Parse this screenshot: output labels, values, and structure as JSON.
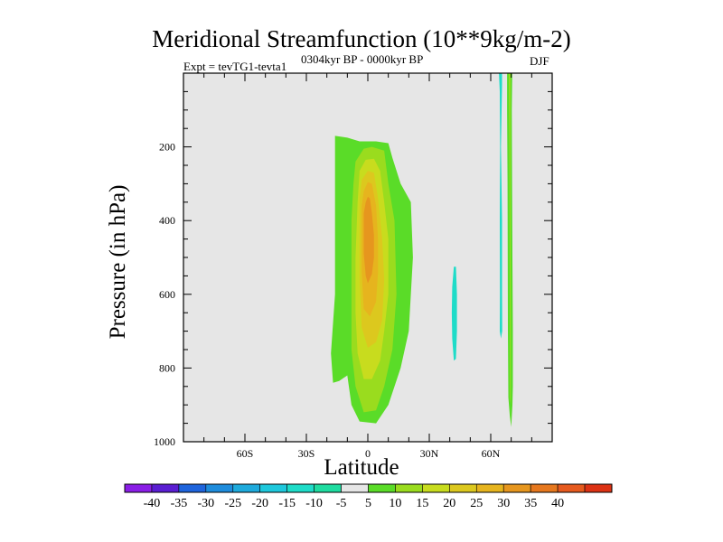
{
  "chart_data": {
    "type": "contour",
    "title": "Meridional Streamfunction (10**9kg/m-2)",
    "subtitle_left": "Expt = tevTG1-tevta1",
    "subtitle_center": "0304kyr BP - 0000kyr BP",
    "subtitle_right": "DJF",
    "xlabel": "Latitude",
    "ylabel": "Pressure (in hPa)",
    "xlim": [
      -90,
      90
    ],
    "ylim": [
      0,
      1000
    ],
    "x_ticks": [
      {
        "value": -60,
        "label": "60S"
      },
      {
        "value": -30,
        "label": "30S"
      },
      {
        "value": 0,
        "label": "0"
      },
      {
        "value": 30,
        "label": "30N"
      },
      {
        "value": 60,
        "label": "60N"
      }
    ],
    "y_ticks": [
      {
        "value": 200,
        "label": "200"
      },
      {
        "value": 400,
        "label": "400"
      },
      {
        "value": 600,
        "label": "600"
      },
      {
        "value": 800,
        "label": "800"
      },
      {
        "value": 1000,
        "label": "1000"
      }
    ],
    "background_color": "#e6e6e6",
    "colorbar": {
      "colors": [
        "#8a1ee6",
        "#5a1ed2",
        "#1e64dc",
        "#1e8cdc",
        "#1eaadc",
        "#1ec8dc",
        "#1edcc8",
        "#1edca0",
        "#e6e6e6",
        "#5adc28",
        "#9adc1e",
        "#c8dc1e",
        "#dcc81e",
        "#e6b41e",
        "#e6961e",
        "#e6781e",
        "#e65a1e",
        "#dc3214"
      ],
      "labels": [
        "-40",
        "-35",
        "-30",
        "-25",
        "-20",
        "-15",
        "-10",
        "-5",
        "5",
        "10",
        "15",
        "20",
        "25",
        "30",
        "35",
        "40"
      ]
    },
    "regions": [
      {
        "name": "positive-cell-5",
        "color": "#5adc28",
        "polygon": [
          [
            -16,
            170
          ],
          [
            -10,
            175
          ],
          [
            -4,
            185
          ],
          [
            4,
            185
          ],
          [
            10,
            190
          ],
          [
            12,
            230
          ],
          [
            16,
            300
          ],
          [
            21,
            350
          ],
          [
            22,
            500
          ],
          [
            20,
            700
          ],
          [
            16,
            800
          ],
          [
            10,
            900
          ],
          [
            4,
            950
          ],
          [
            -4,
            945
          ],
          [
            -8,
            900
          ],
          [
            -10,
            820
          ],
          [
            -14,
            835
          ],
          [
            -17,
            840
          ],
          [
            -18,
            760
          ],
          [
            -16,
            600
          ],
          [
            -16,
            400
          ],
          [
            -16,
            250
          ]
        ]
      },
      {
        "name": "positive-cell-10",
        "color": "#9adc1e",
        "polygon": [
          [
            -6,
            240
          ],
          [
            -2,
            205
          ],
          [
            2,
            200
          ],
          [
            8,
            210
          ],
          [
            10,
            300
          ],
          [
            13,
            400
          ],
          [
            14,
            600
          ],
          [
            12,
            750
          ],
          [
            8,
            850
          ],
          [
            4,
            915
          ],
          [
            -2,
            920
          ],
          [
            -6,
            850
          ],
          [
            -8,
            750
          ],
          [
            -8,
            600
          ],
          [
            -8,
            400
          ],
          [
            -7,
            300
          ]
        ]
      },
      {
        "name": "positive-cell-15",
        "color": "#c8dc1e",
        "polygon": [
          [
            -4,
            265
          ],
          [
            -1,
            235
          ],
          [
            3,
            232
          ],
          [
            6,
            265
          ],
          [
            8,
            350
          ],
          [
            10,
            450
          ],
          [
            10,
            600
          ],
          [
            8,
            700
          ],
          [
            6,
            780
          ],
          [
            2,
            830
          ],
          [
            -2,
            830
          ],
          [
            -5,
            760
          ],
          [
            -6,
            650
          ],
          [
            -6,
            500
          ],
          [
            -5,
            350
          ]
        ]
      },
      {
        "name": "positive-cell-20",
        "color": "#dcc81e",
        "polygon": [
          [
            -3,
            290
          ],
          [
            0,
            265
          ],
          [
            3,
            270
          ],
          [
            5,
            340
          ],
          [
            7,
            450
          ],
          [
            8,
            560
          ],
          [
            7,
            670
          ],
          [
            4,
            730
          ],
          [
            0,
            745
          ],
          [
            -3,
            690
          ],
          [
            -4,
            560
          ],
          [
            -4,
            430
          ],
          [
            -4,
            340
          ]
        ]
      },
      {
        "name": "positive-cell-25",
        "color": "#e6b41e",
        "polygon": [
          [
            -2,
            320
          ],
          [
            0,
            295
          ],
          [
            2,
            300
          ],
          [
            4,
            360
          ],
          [
            5,
            450
          ],
          [
            5,
            540
          ],
          [
            4,
            620
          ],
          [
            1,
            660
          ],
          [
            -2,
            640
          ],
          [
            -3,
            540
          ],
          [
            -3,
            430
          ],
          [
            -3,
            360
          ]
        ]
      },
      {
        "name": "positive-cell-30",
        "color": "#e6961e",
        "polygon": [
          [
            -1,
            350
          ],
          [
            0,
            335
          ],
          [
            1,
            340
          ],
          [
            2,
            380
          ],
          [
            3,
            440
          ],
          [
            3,
            500
          ],
          [
            2,
            545
          ],
          [
            0,
            570
          ],
          [
            -1,
            550
          ],
          [
            -2,
            490
          ],
          [
            -2,
            420
          ],
          [
            -2,
            380
          ]
        ]
      },
      {
        "name": "negative-cell-30n",
        "color": "#1edcc8",
        "polygon": [
          [
            42,
            525
          ],
          [
            43,
            525
          ],
          [
            43.5,
            600
          ],
          [
            43.5,
            700
          ],
          [
            43,
            775
          ],
          [
            42,
            780
          ],
          [
            41.2,
            720
          ],
          [
            41,
            650
          ],
          [
            41.2,
            580
          ]
        ]
      },
      {
        "name": "negative-strip-65n",
        "color": "#1edcc8",
        "polygon": [
          [
            64,
            0
          ],
          [
            65.5,
            0
          ],
          [
            65.5,
            30
          ],
          [
            65,
            200
          ],
          [
            65.5,
            400
          ],
          [
            65.5,
            600
          ],
          [
            65.6,
            700
          ],
          [
            65,
            720
          ],
          [
            64.4,
            700
          ],
          [
            64.5,
            600
          ],
          [
            64.4,
            400
          ],
          [
            64.6,
            200
          ],
          [
            64.4,
            50
          ]
        ]
      },
      {
        "name": "positive-strip-70n",
        "color": "#5adc28",
        "polygon": [
          [
            68,
            0
          ],
          [
            70.5,
            0
          ],
          [
            70.3,
            100
          ],
          [
            70.4,
            300
          ],
          [
            70.6,
            500
          ],
          [
            70.8,
            700
          ],
          [
            70.8,
            850
          ],
          [
            70.6,
            900
          ],
          [
            70,
            960
          ],
          [
            69.3,
            930
          ],
          [
            68.6,
            880
          ],
          [
            68.4,
            700
          ],
          [
            68.3,
            500
          ],
          [
            68.2,
            300
          ],
          [
            68,
            100
          ]
        ]
      },
      {
        "name": "positive-strip-70n-inner",
        "color": "#9adc1e",
        "polygon": [
          [
            68.8,
            0
          ],
          [
            69.6,
            0
          ],
          [
            69.6,
            200
          ],
          [
            69.7,
            450
          ],
          [
            69.8,
            700
          ],
          [
            69.8,
            900
          ],
          [
            69.4,
            880
          ],
          [
            69.3,
            700
          ],
          [
            69.2,
            450
          ],
          [
            69.1,
            200
          ]
        ]
      }
    ]
  }
}
